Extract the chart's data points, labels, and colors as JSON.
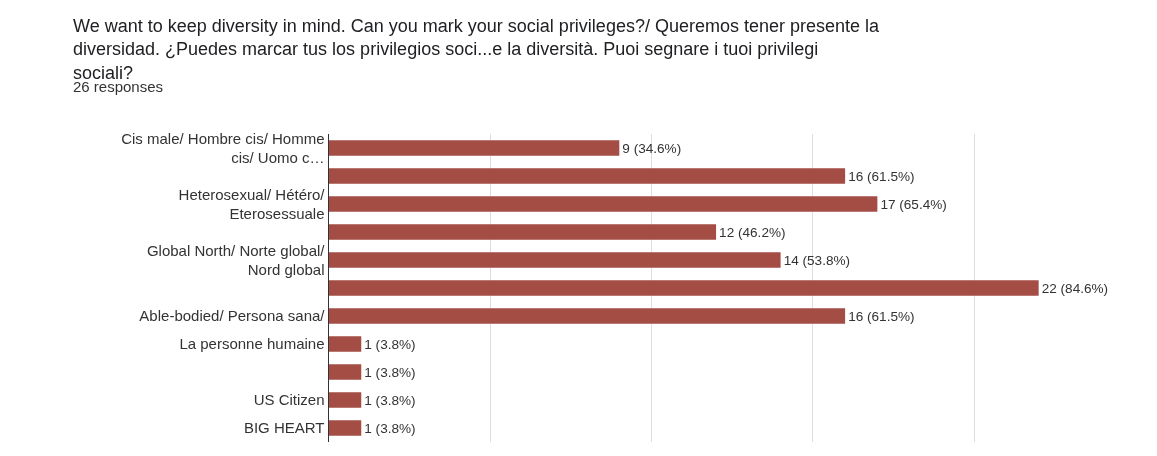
{
  "chart_data": {
    "type": "bar",
    "orientation": "horizontal",
    "title": "We want to keep diversity in mind. Can you mark your social privileges?/ Queremos tener presente la diversidad. ¿Puedes marcar tus los privilegios soci...e la diversità. Puoi segnare i tuoi privilegi sociali?",
    "subtitle": "26 responses",
    "categories": [
      "Cis male/ Hombre cis/ Homme cis/ Uomo c…",
      null,
      "Heterosexual/ Hétéro/ Eterosessuale",
      null,
      "Global North/ Norte global/ Nord global",
      null,
      "Able-bodied/ Persona sana/",
      "La personne humaine",
      null,
      "US Citizen",
      "BIG HEART"
    ],
    "values": [
      9,
      16,
      17,
      12,
      14,
      22,
      16,
      1,
      1,
      1,
      1
    ],
    "value_labels": [
      "9 (34.6%)",
      "16 (61.5%)",
      "17 (65.4%)",
      "12 (46.2%)",
      "14 (53.8%)",
      "22 (84.6%)",
      "16 (61.5%)",
      "1 (3.8%)",
      "1 (3.8%)",
      "1 (3.8%)",
      "1 (3.8%)"
    ],
    "color": "#a34d44",
    "grid": "x",
    "legend": false
  }
}
